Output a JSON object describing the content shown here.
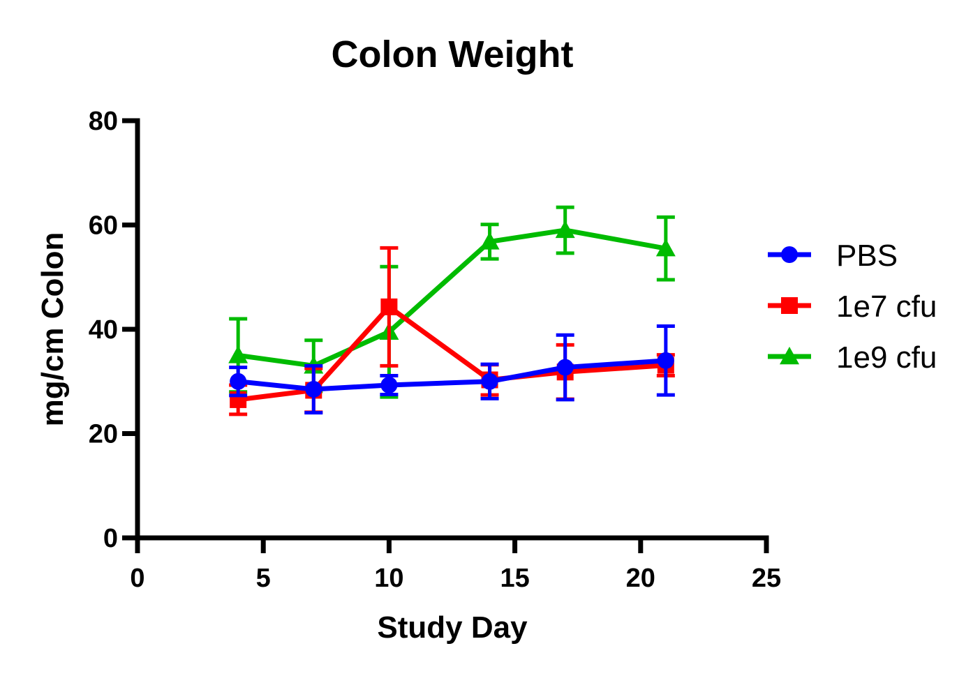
{
  "chart_data": {
    "type": "line",
    "title": "Colon Weight",
    "xlabel": "Study Day",
    "ylabel": "mg/cm Colon",
    "xlim": [
      0,
      25
    ],
    "ylim": [
      0,
      80
    ],
    "xticks": [
      0,
      5,
      10,
      15,
      20,
      25
    ],
    "yticks": [
      0,
      20,
      40,
      60,
      80
    ],
    "grid": false,
    "legend_position": "right",
    "series": [
      {
        "name": "PBS",
        "color": "#0000ff",
        "marker": "circle",
        "x": [
          4,
          7,
          10,
          14,
          17,
          21
        ],
        "y": [
          30.0,
          28.5,
          29.3,
          30.0,
          32.7,
          34.0
        ],
        "error": [
          2.7,
          4.5,
          1.8,
          3.3,
          6.2,
          6.6
        ]
      },
      {
        "name": "1e7 cfu",
        "color": "#ff0000",
        "marker": "square",
        "x": [
          4,
          7,
          10,
          14,
          17,
          21
        ],
        "y": [
          26.5,
          28.3,
          44.3,
          30.3,
          31.8,
          33.1
        ],
        "error": [
          2.8,
          4.2,
          11.3,
          2.9,
          5.2,
          2.0
        ]
      },
      {
        "name": "1e9 cfu",
        "color": "#00bb00",
        "marker": "triangle",
        "x": [
          4,
          7,
          10,
          14,
          17,
          21
        ],
        "y": [
          35.0,
          33.0,
          39.5,
          56.8,
          59.0,
          55.5
        ],
        "error": [
          7.0,
          4.9,
          12.5,
          3.3,
          4.4,
          6.0
        ]
      }
    ]
  }
}
